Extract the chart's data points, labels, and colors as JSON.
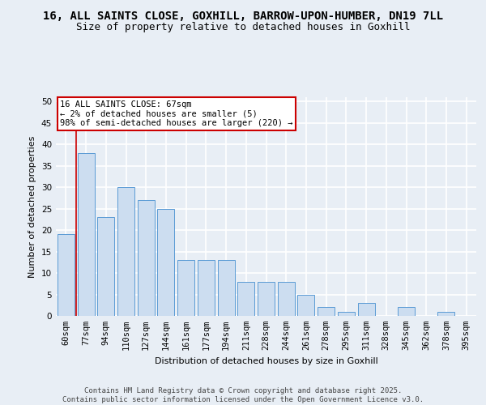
{
  "title1": "16, ALL SAINTS CLOSE, GOXHILL, BARROW-UPON-HUMBER, DN19 7LL",
  "title2": "Size of property relative to detached houses in Goxhill",
  "xlabel": "Distribution of detached houses by size in Goxhill",
  "ylabel": "Number of detached properties",
  "footer": "Contains HM Land Registry data © Crown copyright and database right 2025.\nContains public sector information licensed under the Open Government Licence v3.0.",
  "categories": [
    "60sqm",
    "77sqm",
    "94sqm",
    "110sqm",
    "127sqm",
    "144sqm",
    "161sqm",
    "177sqm",
    "194sqm",
    "211sqm",
    "228sqm",
    "244sqm",
    "261sqm",
    "278sqm",
    "295sqm",
    "311sqm",
    "328sqm",
    "345sqm",
    "362sqm",
    "378sqm",
    "395sqm"
  ],
  "values": [
    19,
    38,
    23,
    30,
    27,
    25,
    13,
    13,
    13,
    8,
    8,
    8,
    5,
    2,
    1,
    3,
    0,
    2,
    0,
    1,
    0
  ],
  "bar_color": "#ccddf0",
  "bar_edge_color": "#5b9bd5",
  "annotation_title": "16 ALL SAINTS CLOSE: 67sqm",
  "annotation_line2": "← 2% of detached houses are smaller (5)",
  "annotation_line3": "98% of semi-detached houses are larger (220) →",
  "annotation_box_color": "#ffffff",
  "annotation_box_edge": "#cc0000",
  "vline_color": "#cc0000",
  "ylim": [
    0,
    51
  ],
  "yticks": [
    0,
    5,
    10,
    15,
    20,
    25,
    30,
    35,
    40,
    45,
    50
  ],
  "bg_color": "#e8eef5",
  "plot_bg": "#e8eef5",
  "grid_color": "#ffffff",
  "title_fontsize": 10,
  "subtitle_fontsize": 9,
  "axis_label_fontsize": 8,
  "tick_fontsize": 7.5,
  "footer_fontsize": 6.5,
  "annotation_fontsize": 7.5
}
